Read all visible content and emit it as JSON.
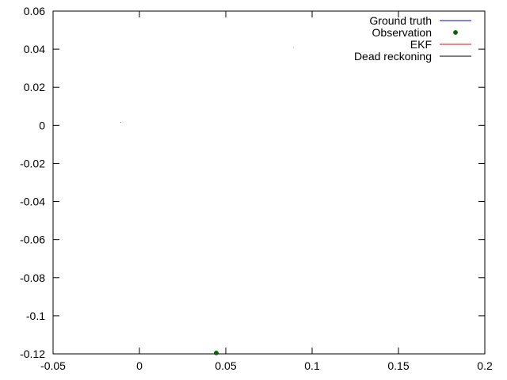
{
  "chart_data": {
    "type": "scatter",
    "title": "",
    "xlabel": "",
    "ylabel": "",
    "xlim": [
      -0.05,
      0.2
    ],
    "ylim": [
      -0.12,
      0.06
    ],
    "xticks": [
      {
        "value": -0.05,
        "label": "-0.05"
      },
      {
        "value": 0,
        "label": "0"
      },
      {
        "value": 0.05,
        "label": "0.05"
      },
      {
        "value": 0.1,
        "label": "0.1"
      },
      {
        "value": 0.15,
        "label": "0.15"
      },
      {
        "value": 0.2,
        "label": "0.2"
      }
    ],
    "yticks": [
      {
        "value": 0.06,
        "label": "0.06"
      },
      {
        "value": 0.04,
        "label": "0.04"
      },
      {
        "value": 0.02,
        "label": "0.02"
      },
      {
        "value": 0,
        "label": "0"
      },
      {
        "value": -0.02,
        "label": "-0.02"
      },
      {
        "value": -0.04,
        "label": "-0.04"
      },
      {
        "value": -0.06,
        "label": "-0.06"
      },
      {
        "value": -0.08,
        "label": "-0.08"
      },
      {
        "value": -0.1,
        "label": "-0.1"
      },
      {
        "value": -0.12,
        "label": "-0.12"
      }
    ],
    "grid": false,
    "legend_position": "top-right",
    "series": [
      {
        "name": "Ground truth",
        "kind": "line",
        "color": "#0000ff",
        "points": [
          [
            -0.011,
            0.0016
          ],
          [
            -0.0108,
            0.0016
          ]
        ]
      },
      {
        "name": "Observation",
        "kind": "points",
        "color": "#006400",
        "marker": "star",
        "points": [
          [
            0.0445,
            -0.1195
          ]
        ]
      },
      {
        "name": "EKF",
        "kind": "line",
        "color": "#ff0000",
        "points": [
          [
            0.089,
            0.041
          ],
          [
            0.0892,
            0.041
          ]
        ]
      },
      {
        "name": "Dead reckoning",
        "kind": "line",
        "color": "#000000",
        "points": [
          [
            -0.011,
            0.0016
          ],
          [
            -0.0108,
            0.0016
          ]
        ]
      }
    ]
  }
}
